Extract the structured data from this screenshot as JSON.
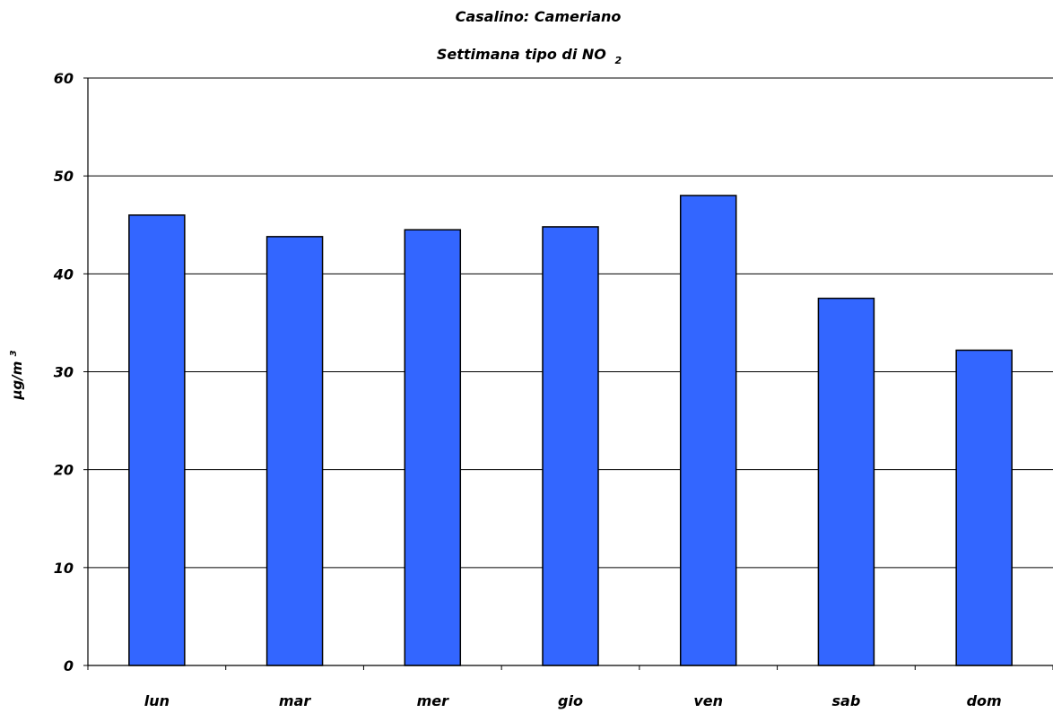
{
  "chart_data": {
    "type": "bar",
    "title_line1": "Casalino: Cameriano",
    "title_line2_main": "Settimana tipo di NO",
    "title_line2_sub": "2",
    "ylabel_main": "µg/m",
    "ylabel_sup": "3",
    "xlabel": "",
    "categories": [
      "lun",
      "mar",
      "mer",
      "gio",
      "ven",
      "sab",
      "dom"
    ],
    "values": [
      46.0,
      43.8,
      44.5,
      44.8,
      48.0,
      37.5,
      32.2
    ],
    "ylim": [
      0,
      60
    ],
    "yticks": [
      0,
      10,
      20,
      30,
      40,
      50,
      60
    ],
    "grid": true,
    "legend": "none",
    "bar_color": "#3366FF"
  }
}
